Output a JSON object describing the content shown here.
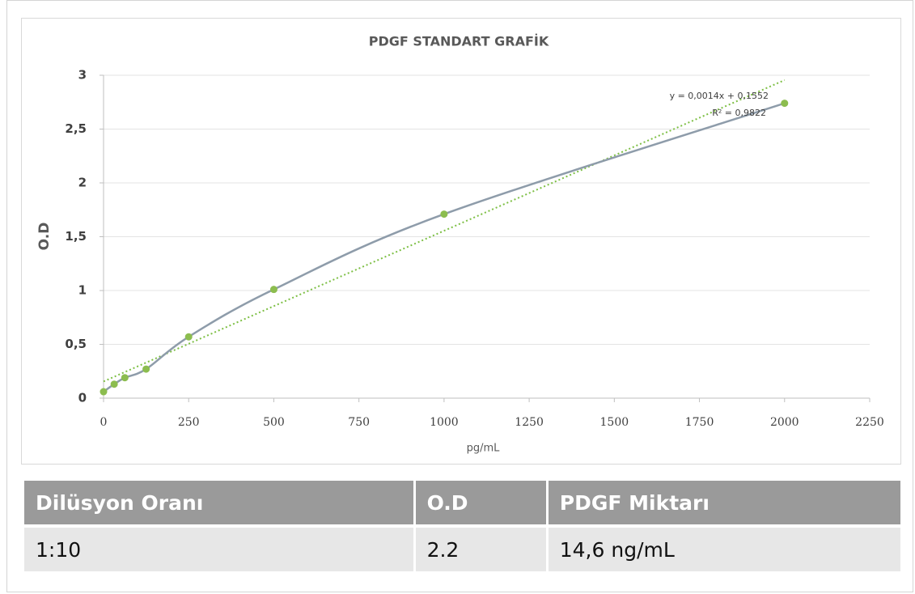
{
  "chart_data": {
    "type": "scatter",
    "title": "PDGF STANDART GRAFİK",
    "x_label": "pg/mL",
    "y_label": "O.D",
    "x": [
      0,
      31.25,
      62.5,
      125,
      250,
      500,
      1000,
      2000
    ],
    "values": [
      0.06,
      0.13,
      0.19,
      0.27,
      0.57,
      1.01,
      1.71,
      2.74
    ],
    "color": "#8cbd4f",
    "line_color": "#8e9caa",
    "smooth": true,
    "trendline": {
      "slope": 0.0014,
      "intercept": 0.1552,
      "equation": "y = 0,0014x + 0,1552",
      "r_squared": "R² = 0,9822",
      "color": "#7dbf44"
    },
    "xlim": [
      0,
      2250
    ],
    "xticks": [
      0,
      250,
      500,
      750,
      1000,
      1250,
      1500,
      1750,
      2000,
      2250
    ],
    "ylim": [
      0,
      3
    ],
    "yticks": [
      0,
      {
        "value": 0.5,
        "label": "0,5"
      },
      1,
      {
        "value": 1.5,
        "label": "1,5"
      },
      2,
      {
        "value": 2.5,
        "label": "2,5"
      },
      3
    ],
    "grid": true
  },
  "table": {
    "headers": [
      "Dilüsyon Oranı",
      "O.D",
      "PDGF Miktarı"
    ],
    "rows": [
      [
        "1:10",
        "2.2",
        "14,6 ng/mL"
      ]
    ]
  }
}
